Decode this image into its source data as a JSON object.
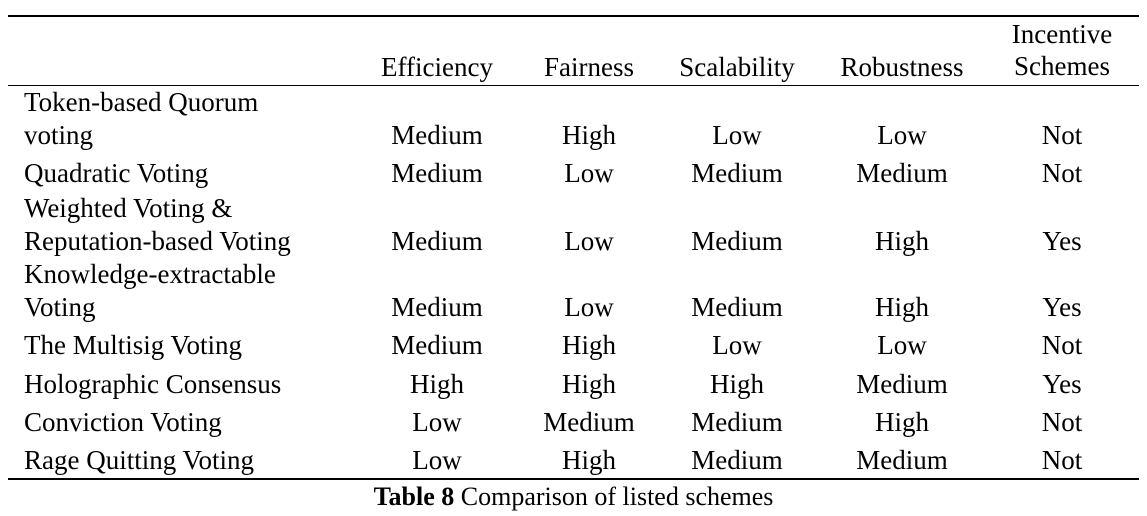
{
  "table": {
    "columns": [
      "Efficiency",
      "Fairness",
      "Scalability",
      "Robustness",
      "Incentive Schemes"
    ],
    "incentive_line1": "Incentive",
    "incentive_line2": "Schemes",
    "rows": [
      {
        "name_line1": "Token-based Quorum",
        "name_line2": "voting",
        "values": [
          "Medium",
          "High",
          "Low",
          "Low",
          "Not"
        ]
      },
      {
        "name_line1": "Quadratic Voting",
        "name_line2": "",
        "values": [
          "Medium",
          "Low",
          "Medium",
          "Medium",
          "Not"
        ]
      },
      {
        "name_line1": "Weighted Voting &",
        "name_line2": "Reputation-based Voting",
        "values": [
          "Medium",
          "Low",
          "Medium",
          "High",
          "Yes"
        ]
      },
      {
        "name_line1": "Knowledge-extractable",
        "name_line2": "Voting",
        "values": [
          "Medium",
          "Low",
          "Medium",
          "High",
          "Yes"
        ]
      },
      {
        "name_line1": "The Multisig Voting",
        "name_line2": "",
        "values": [
          "Medium",
          "High",
          "Low",
          "Low",
          "Not"
        ]
      },
      {
        "name_line1": "Holographic Consensus",
        "name_line2": "",
        "values": [
          "High",
          "High",
          "High",
          "Medium",
          "Yes"
        ]
      },
      {
        "name_line1": "Conviction Voting",
        "name_line2": "",
        "values": [
          "Low",
          "Medium",
          "Medium",
          "High",
          "Not"
        ]
      },
      {
        "name_line1": "Rage Quitting Voting",
        "name_line2": "",
        "values": [
          "Low",
          "High",
          "Medium",
          "Medium",
          "Not"
        ]
      }
    ]
  },
  "caption": {
    "label": "Table 8",
    "text": " Comparison of listed schemes"
  }
}
